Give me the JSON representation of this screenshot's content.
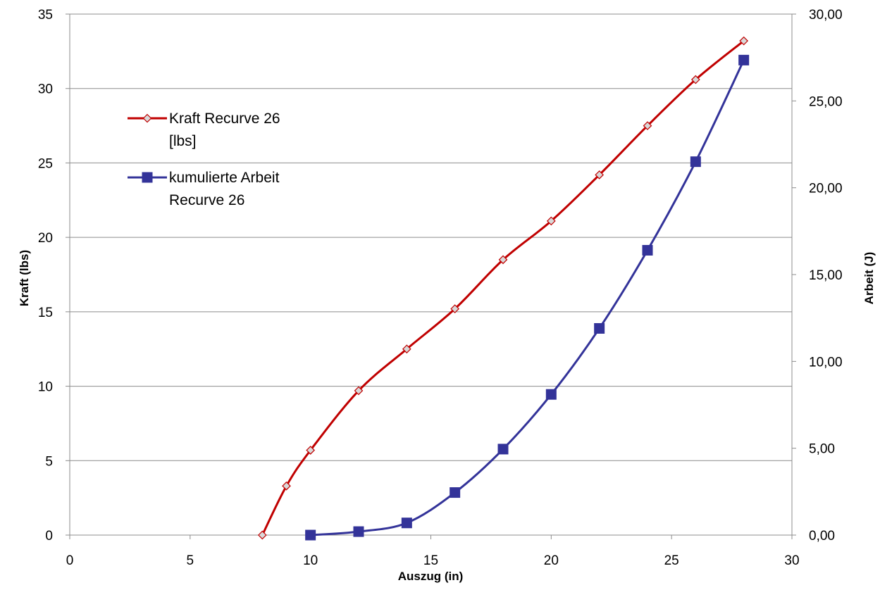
{
  "chart_data": {
    "type": "line",
    "xlabel": "Auszug (in)",
    "ylabel_left": "Kraft (lbs)",
    "ylabel_right": "Arbeit (J)",
    "xlim": [
      0,
      30
    ],
    "ylim_left": [
      0,
      35
    ],
    "ylim_right": [
      0,
      30
    ],
    "x_ticks": [
      "0",
      "5",
      "10",
      "15",
      "20",
      "25",
      "30"
    ],
    "y_left_ticks": [
      "0",
      "5",
      "10",
      "15",
      "20",
      "25",
      "30",
      "35"
    ],
    "y_right_ticks": [
      "0,00",
      "5,00",
      "10,00",
      "15,00",
      "20,00",
      "25,00",
      "30,00"
    ],
    "grid": "horizontal",
    "legend_position": "top-left",
    "series": [
      {
        "name_lines": [
          "Kraft Recurve 26",
          "[lbs]"
        ],
        "axis": "left",
        "color": "#c00000",
        "marker": "diamond",
        "x": [
          8,
          9,
          10,
          12,
          14,
          16,
          18,
          20,
          22,
          24,
          26,
          28
        ],
        "y": [
          0,
          3.3,
          5.7,
          9.7,
          12.5,
          15.2,
          18.5,
          21.1,
          24.2,
          27.5,
          30.6,
          33.2
        ]
      },
      {
        "name_lines": [
          "kumulierte Arbeit",
          "Recurve 26"
        ],
        "axis": "right",
        "color": "#333399",
        "marker": "square",
        "x": [
          10,
          12,
          14,
          16,
          18,
          20,
          22,
          24,
          26,
          28
        ],
        "y": [
          0,
          0.2,
          0.7,
          2.45,
          4.95,
          8.1,
          11.9,
          16.4,
          21.5,
          27.35
        ]
      }
    ]
  }
}
